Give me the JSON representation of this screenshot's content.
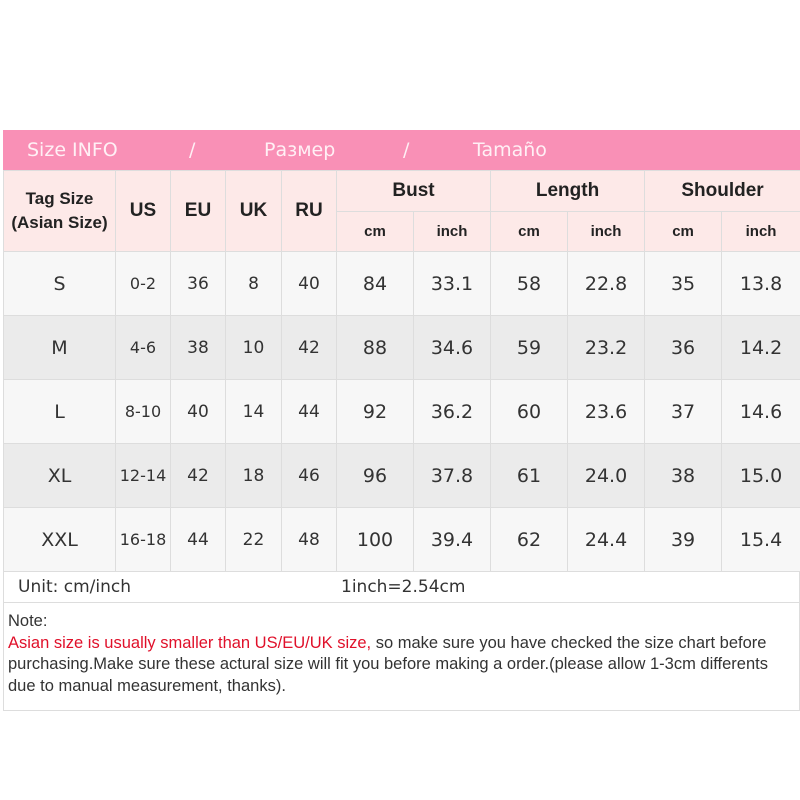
{
  "title_bar": {
    "en": "Size INFO",
    "sep1": "/",
    "ru": "Размер",
    "sep2": "/",
    "es": "Tamaño"
  },
  "headers": {
    "tag_size": "Tag Size (Asian Size)",
    "us": "US",
    "eu": "EU",
    "uk": "UK",
    "ru": "RU",
    "bust": "Bust",
    "length": "Length",
    "shoulder": "Shoulder",
    "cm": "cm",
    "inch": "inch"
  },
  "rows": [
    [
      "S",
      "0-2",
      "36",
      "8",
      "40",
      "84",
      "33.1",
      "58",
      "22.8",
      "35",
      "13.8"
    ],
    [
      "M",
      "4-6",
      "38",
      "10",
      "42",
      "88",
      "34.6",
      "59",
      "23.2",
      "36",
      "14.2"
    ],
    [
      "L",
      "8-10",
      "40",
      "14",
      "44",
      "92",
      "36.2",
      "60",
      "23.6",
      "37",
      "14.6"
    ],
    [
      "XL",
      "12-14",
      "42",
      "18",
      "46",
      "96",
      "37.8",
      "61",
      "24.0",
      "38",
      "15.0"
    ],
    [
      "XXL",
      "16-18",
      "44",
      "22",
      "48",
      "100",
      "39.4",
      "62",
      "24.4",
      "39",
      "15.4"
    ]
  ],
  "unit": {
    "label": "Unit: cm/inch",
    "conversion": "1inch=2.54cm"
  },
  "note": {
    "heading": "Note:",
    "warning": "Asian size is usually smaller than US/EU/UK size,",
    "body": " so make sure you have checked the size chart before purchasing.Make sure these actural size will fit you before making a order.(please allow 1-3cm differents due to manual measurement, thanks)."
  },
  "colors": {
    "title_bar": "#f990b6",
    "header_bg": "#fde9e8",
    "warning": "#e0102a"
  }
}
